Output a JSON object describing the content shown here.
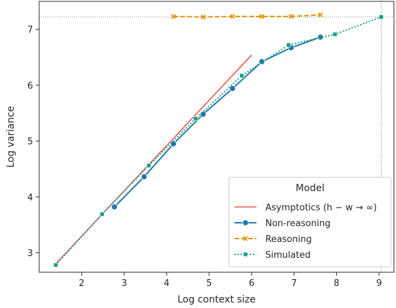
{
  "chart_data": {
    "type": "line",
    "title": "",
    "xlabel": "Log context size",
    "ylabel": "Log variance",
    "xlim": [
      1.0,
      9.35
    ],
    "ylim": [
      2.65,
      7.5
    ],
    "xticks": [
      2,
      3,
      4,
      5,
      6,
      7,
      8,
      9
    ],
    "yticks": [
      3,
      4,
      5,
      6,
      7
    ],
    "grid": false,
    "legend": {
      "title": "Model",
      "placement": "bottom-right"
    },
    "reference_lines": {
      "horizontal_y": 7.22,
      "vertical_x": 9.05,
      "style": "dotted",
      "color": "#555555"
    },
    "series": [
      {
        "name": "Asymptotics (h − w → ∞)",
        "style": "solid",
        "marker": "none",
        "color": "#e8382f",
        "x": [
          1.4,
          6.0
        ],
        "y": [
          2.81,
          6.54
        ]
      },
      {
        "name": "Non-reasoning",
        "style": "solid",
        "marker": "circle",
        "color": "#1f77a8",
        "x": [
          2.77,
          3.47,
          4.16,
          4.86,
          5.55,
          6.24,
          6.93,
          7.62
        ],
        "y": [
          3.82,
          4.36,
          4.95,
          5.48,
          5.94,
          6.42,
          6.67,
          6.86
        ]
      },
      {
        "name": "Reasoning",
        "style": "dashed",
        "marker": "x",
        "color": "#e2960d",
        "x": [
          4.16,
          4.86,
          5.55,
          6.24,
          6.93,
          7.62
        ],
        "y": [
          7.23,
          7.22,
          7.23,
          7.23,
          7.23,
          7.26
        ]
      },
      {
        "name": "Simulated",
        "style": "dotted",
        "marker": "square",
        "color": "#14a085",
        "x": [
          1.39,
          2.48,
          3.58,
          4.68,
          5.77,
          6.87,
          7.96,
          9.05
        ],
        "y": [
          2.78,
          3.69,
          4.56,
          5.4,
          6.17,
          6.72,
          6.91,
          7.22
        ]
      }
    ]
  }
}
